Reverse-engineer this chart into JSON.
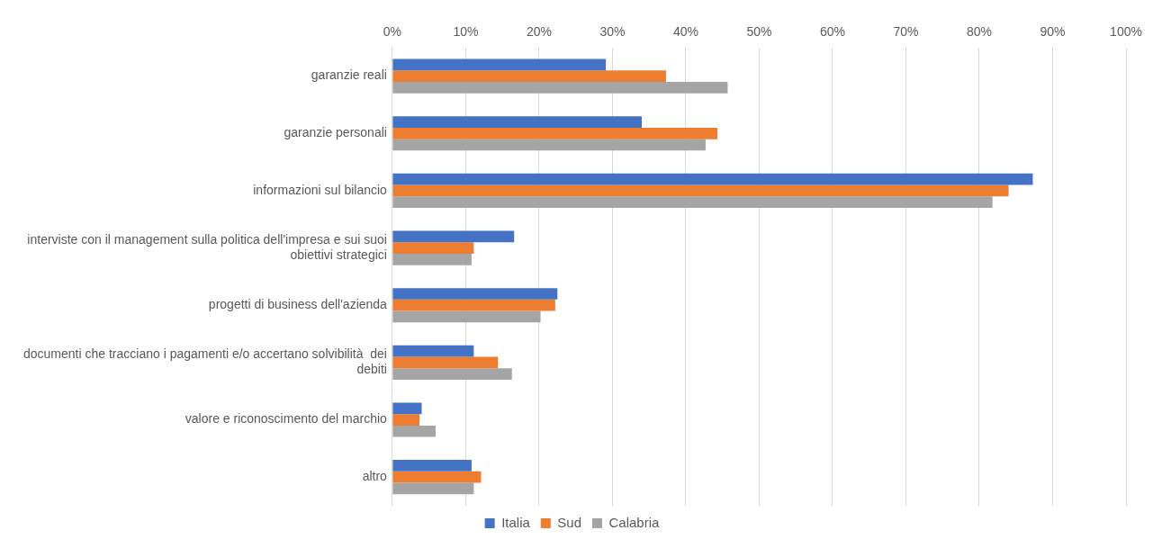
{
  "chart_data": {
    "type": "bar",
    "orientation": "horizontal",
    "categories": [
      "garanzie reali",
      "garanzie personali",
      "informazioni sul bilancio",
      "interviste con il management sulla politica dell'impresa e sui suoi obiettivi strategici",
      "progetti di business dell'azienda",
      "documenti che tracciano i pagamenti e/o accertano solvibilità  dei debiti",
      "valore e riconoscimento del marchio",
      "altro"
    ],
    "series": [
      {
        "name": "Italia",
        "color": "#4472c4",
        "values": [
          29.1,
          34,
          87.3,
          16.6,
          22.5,
          11.1,
          4,
          10.8
        ]
      },
      {
        "name": "Sud",
        "color": "#ed7d31",
        "values": [
          37.3,
          44.3,
          84,
          11.1,
          22.2,
          14.4,
          3.7,
          12.1
        ]
      },
      {
        "name": "Calabria",
        "color": "#a5a5a5",
        "values": [
          45.7,
          42.7,
          81.8,
          10.8,
          20.2,
          16.3,
          5.9,
          11.1
        ]
      }
    ],
    "xlim": [
      0,
      100
    ],
    "xticks": [
      {
        "value": 0,
        "label": "0%"
      },
      {
        "value": 10,
        "label": "10%"
      },
      {
        "value": 20,
        "label": "20%"
      },
      {
        "value": 30,
        "label": "30%"
      },
      {
        "value": 40,
        "label": "40%"
      },
      {
        "value": 50,
        "label": "50%"
      },
      {
        "value": 60,
        "label": "60%"
      },
      {
        "value": 70,
        "label": "70%"
      },
      {
        "value": 80,
        "label": "80%"
      },
      {
        "value": 90,
        "label": "90%"
      },
      {
        "value": 100,
        "label": "100%"
      }
    ],
    "grid": "x",
    "legend": "bottom"
  }
}
